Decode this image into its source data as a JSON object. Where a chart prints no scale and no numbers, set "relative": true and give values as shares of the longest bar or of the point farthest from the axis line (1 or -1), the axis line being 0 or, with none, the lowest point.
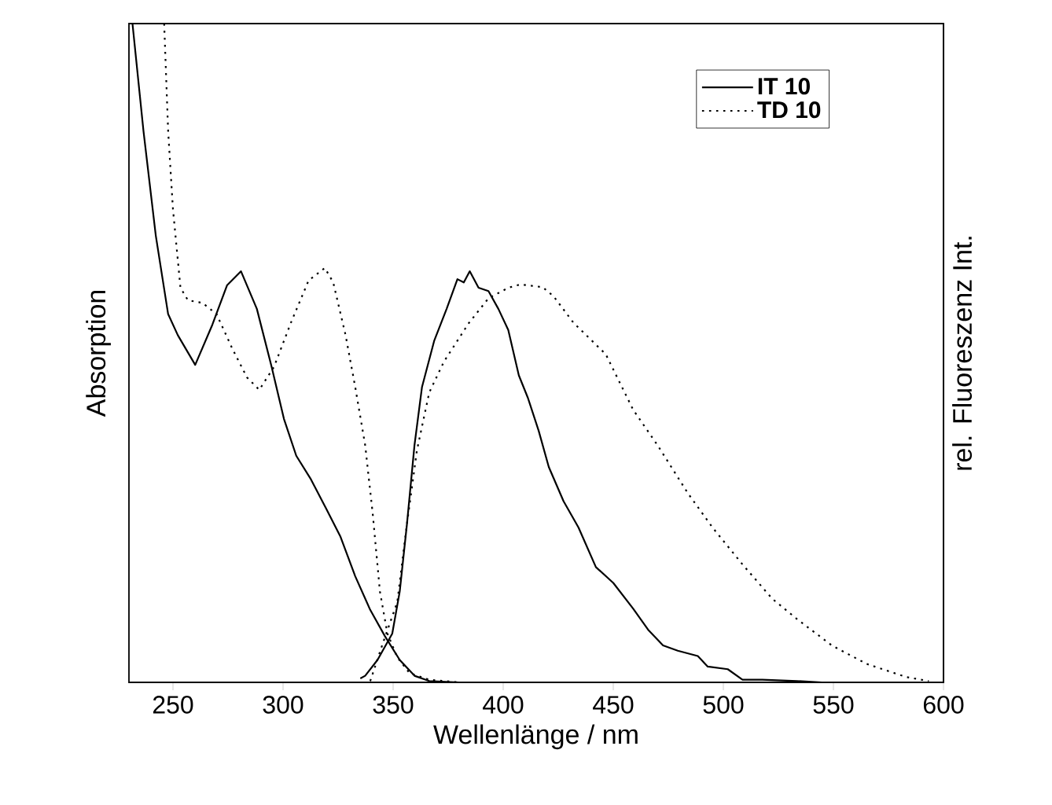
{
  "chart_data": {
    "type": "line",
    "relative": true,
    "xlabel": "Wellenlänge / nm",
    "ylabel": "Absorption",
    "y2label": "rel. Fluoreszenz Int.",
    "xlim": [
      230,
      600
    ],
    "xticks": [
      250,
      300,
      350,
      400,
      450,
      500,
      550,
      600
    ],
    "legend": "top right",
    "marker": "none",
    "series": [
      {
        "name": "IT 10",
        "color": "#000000",
        "line_style": "solid",
        "x": [
          231.6,
          236.6,
          242.2,
          247.8,
          252.2,
          260.1,
          267.9,
          274.6,
          280.9,
          288.1,
          294.8,
          300.4,
          306.0,
          312.7,
          319.4,
          326.1,
          332.8,
          339.6,
          346.3,
          353.0,
          359.7,
          366.4,
          379.9
        ],
        "values": [
          1.0,
          0.837,
          0.678,
          0.559,
          0.527,
          0.482,
          0.543,
          0.603,
          0.624,
          0.567,
          0.479,
          0.4,
          0.344,
          0.308,
          0.265,
          0.221,
          0.161,
          0.11,
          0.07,
          0.034,
          0.01,
          0.002,
          0
        ]
      },
      {
        "name": "TD 10",
        "color": "#000000",
        "line_style": "dotted",
        "x": [
          246.0,
          247.8,
          250,
          253.4,
          256.8,
          263.4,
          269.8,
          276.9,
          283.6,
          289.2,
          295.9,
          303.7,
          311.6,
          319.0,
          322.8,
          328.4,
          332.8,
          337.3,
          340.7,
          344.0,
          347.4,
          351.9,
          357.5,
          366.4,
          379.9
        ],
        "values": [
          1.0,
          0.837,
          0.718,
          0.599,
          0.58,
          0.576,
          0.559,
          0.507,
          0.463,
          0.444,
          0.479,
          0.547,
          0.61,
          0.629,
          0.607,
          0.527,
          0.448,
          0.36,
          0.257,
          0.138,
          0.074,
          0.038,
          0.014,
          0.004,
          0
        ]
      },
      {
        "color": "#000000",
        "line_style": "solid",
        "axis": "y2",
        "x": [
          335.1,
          337.3,
          342.9,
          349.6,
          353.0,
          356.3,
          359.7,
          363.1,
          368.7,
          374.3,
          379.2,
          382.1,
          384.8,
          388.8,
          393.3,
          397.8,
          402.3,
          407.1,
          411.2,
          416.1,
          420.7,
          427.4,
          434.2,
          442.1,
          450,
          459.0,
          465.8,
          472.6,
          479.3,
          488.4,
          492.9,
          502.0,
          508.7,
          517.7,
          533.5,
          544.8
        ],
        "values": [
          0.006,
          0.01,
          0.034,
          0.074,
          0.138,
          0.241,
          0.36,
          0.448,
          0.519,
          0.567,
          0.612,
          0.607,
          0.624,
          0.599,
          0.594,
          0.567,
          0.535,
          0.466,
          0.432,
          0.382,
          0.327,
          0.275,
          0.235,
          0.175,
          0.151,
          0.112,
          0.08,
          0.056,
          0.048,
          0.04,
          0.024,
          0.02,
          0.004,
          0.004,
          0.002,
          0
        ]
      },
      {
        "color": "#000000",
        "line_style": "dotted",
        "axis": "y2",
        "x": [
          339.6,
          345.2,
          351.9,
          356.3,
          360.8,
          366.4,
          373.1,
          384.3,
          393.3,
          402.3,
          407.8,
          417.9,
          422.9,
          431.9,
          446.6,
          459.0,
          470.3,
          483.9,
          495.1,
          508.7,
          522.2,
          533.5,
          549.3,
          565.1,
          583.2,
          593.3
        ],
        "values": [
          0.002,
          0.058,
          0.122,
          0.241,
          0.352,
          0.44,
          0.487,
          0.545,
          0.583,
          0.599,
          0.604,
          0.6,
          0.586,
          0.546,
          0.498,
          0.414,
          0.359,
          0.287,
          0.235,
          0.179,
          0.127,
          0.096,
          0.056,
          0.028,
          0.008,
          0.002
        ]
      }
    ]
  }
}
